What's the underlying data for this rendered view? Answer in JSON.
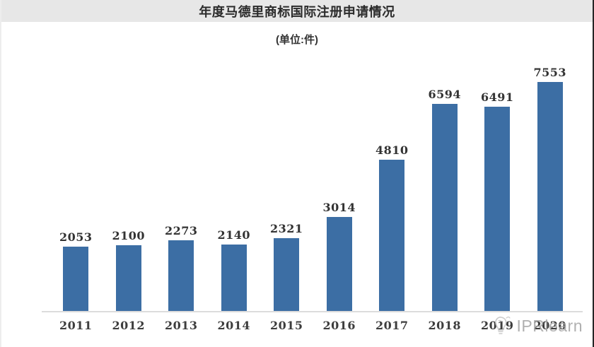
{
  "chart_data": {
    "type": "bar",
    "title": "年度马德里商标国际注册申请情况",
    "unit_label": "(单位:件)",
    "categories": [
      "2011",
      "2012",
      "2013",
      "2014",
      "2015",
      "2016",
      "2017",
      "2018",
      "2019",
      "2020"
    ],
    "values": [
      2053,
      2100,
      2273,
      2140,
      2321,
      3014,
      4810,
      6594,
      6491,
      7553
    ],
    "xlabel": "",
    "ylabel": "",
    "ylim": [
      0,
      7553
    ],
    "grid": false,
    "legend": "none",
    "data_labels": true,
    "bar_color": "#3c6ea4"
  },
  "watermark": {
    "text": "IPRlearn",
    "icon": "lightbulb-sketch-icon",
    "color": "#a3a3a3"
  }
}
